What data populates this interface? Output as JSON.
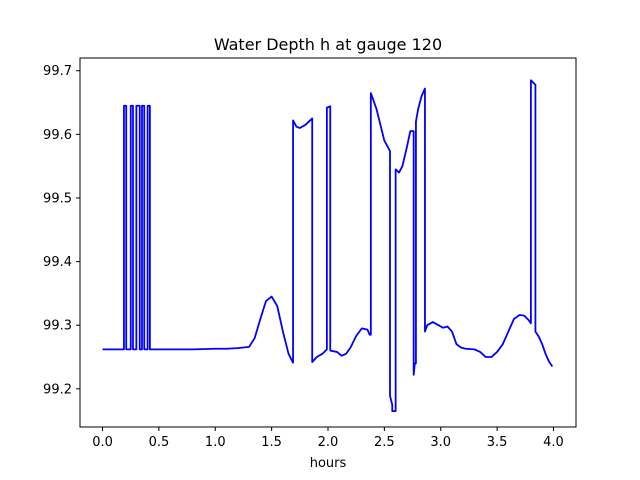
{
  "chart_data": {
    "type": "line",
    "title": "Water Depth h at gauge 120",
    "xlabel": "hours",
    "ylabel": "",
    "xlim": [
      -0.2,
      4.2
    ],
    "ylim": [
      99.14,
      99.72
    ],
    "xticks": [
      0.0,
      0.5,
      1.0,
      1.5,
      2.0,
      2.5,
      3.0,
      3.5,
      4.0
    ],
    "xtick_labels": [
      "0.0",
      "0.5",
      "1.0",
      "1.5",
      "2.0",
      "2.5",
      "3.0",
      "3.5",
      "4.0"
    ],
    "yticks": [
      99.2,
      99.3,
      99.4,
      99.5,
      99.6,
      99.7
    ],
    "ytick_labels": [
      "99.2",
      "99.3",
      "99.4",
      "99.5",
      "99.6",
      "99.7"
    ],
    "grid": false,
    "line_color": "#0000ff",
    "series": [
      {
        "x": [
          0.0,
          0.19,
          0.19,
          0.21,
          0.21,
          0.25,
          0.25,
          0.27,
          0.27,
          0.3,
          0.3,
          0.33,
          0.33,
          0.35,
          0.35,
          0.37,
          0.37,
          0.4,
          0.4,
          0.42,
          0.42,
          0.5,
          0.8,
          1.0,
          1.1,
          1.2,
          1.3,
          1.35,
          1.4,
          1.45,
          1.5,
          1.55,
          1.6,
          1.65,
          1.69,
          1.69,
          1.72,
          1.75,
          1.8,
          1.86,
          1.86,
          1.9,
          1.95,
          1.99,
          1.99,
          2.02,
          2.02,
          2.08,
          2.12,
          2.16,
          2.2,
          2.25,
          2.3,
          2.35,
          2.37,
          2.38,
          2.38,
          2.43,
          2.5,
          2.55,
          2.55,
          2.57,
          2.57,
          2.6,
          2.6,
          2.63,
          2.66,
          2.7,
          2.73,
          2.76,
          2.76,
          2.77,
          2.78,
          2.78,
          2.8,
          2.83,
          2.86,
          2.86,
          2.88,
          2.93,
          2.98,
          3.02,
          3.06,
          3.1,
          3.14,
          3.18,
          3.22,
          3.3,
          3.35,
          3.4,
          3.45,
          3.5,
          3.55,
          3.6,
          3.65,
          3.7,
          3.74,
          3.78,
          3.8,
          3.8,
          3.84,
          3.84,
          3.87,
          3.9,
          3.93,
          3.96,
          3.99
        ],
        "y": [
          99.262,
          99.262,
          99.645,
          99.645,
          99.262,
          99.262,
          99.645,
          99.645,
          99.262,
          99.262,
          99.645,
          99.645,
          99.262,
          99.262,
          99.645,
          99.645,
          99.262,
          99.262,
          99.645,
          99.645,
          99.262,
          99.262,
          99.262,
          99.263,
          99.263,
          99.264,
          99.266,
          99.28,
          99.31,
          99.338,
          99.345,
          99.33,
          99.29,
          99.255,
          99.241,
          99.622,
          99.612,
          99.61,
          99.615,
          99.625,
          99.242,
          99.25,
          99.255,
          99.262,
          99.642,
          99.644,
          99.26,
          99.258,
          99.252,
          99.255,
          99.265,
          99.283,
          99.295,
          99.293,
          99.285,
          99.285,
          99.665,
          99.64,
          99.59,
          99.574,
          99.189,
          99.175,
          99.165,
          99.165,
          99.545,
          99.54,
          99.55,
          99.58,
          99.605,
          99.605,
          99.222,
          99.24,
          99.24,
          99.62,
          99.64,
          99.66,
          99.672,
          99.29,
          99.3,
          99.305,
          99.3,
          99.296,
          99.298,
          99.29,
          99.27,
          99.265,
          99.263,
          99.262,
          99.258,
          99.25,
          99.25,
          99.258,
          99.27,
          99.29,
          99.31,
          99.316,
          99.315,
          99.308,
          99.303,
          99.685,
          99.678,
          99.29,
          99.282,
          99.27,
          99.255,
          99.243,
          99.235
        ]
      }
    ]
  }
}
